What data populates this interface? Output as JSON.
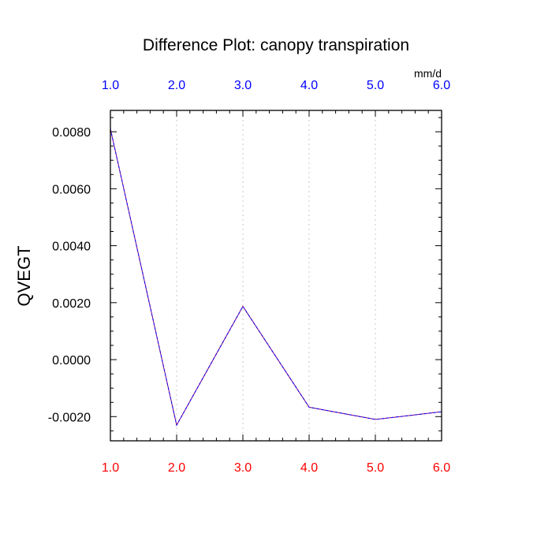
{
  "chart_data": {
    "type": "line",
    "title": "Difference Plot: canopy transpiration",
    "ylabel": "QVEGT",
    "units": "mm/d",
    "x": [
      1.0,
      2.0,
      3.0,
      4.0,
      5.0,
      6.0
    ],
    "series": [
      {
        "values": [
          0.0081,
          -0.0023,
          0.00187,
          -0.00167,
          -0.0021,
          -0.00183
        ],
        "color": "#800080",
        "overlay_color": "#0000ff",
        "style": "dashed"
      }
    ],
    "xlim": [
      1.0,
      6.0
    ],
    "ylim": [
      -0.00285,
      0.00875
    ],
    "x_ticks": [
      "1.0",
      "2.0",
      "3.0",
      "4.0",
      "5.0",
      "6.0"
    ],
    "y_tick_values": [
      -0.002,
      0.0,
      0.002,
      0.004,
      0.006,
      0.008
    ],
    "y_ticks": [
      "-0.0020",
      "0.0000",
      "0.0020",
      "0.0040",
      "0.0060",
      "0.0080"
    ],
    "x_minor_step": 0.2,
    "y_minor_step": 0.0005,
    "vertical_grid": true,
    "grid_color": "#c8c8c8",
    "bottom_tick_color": "#ff0000",
    "top_tick_color": "#0000ff"
  }
}
